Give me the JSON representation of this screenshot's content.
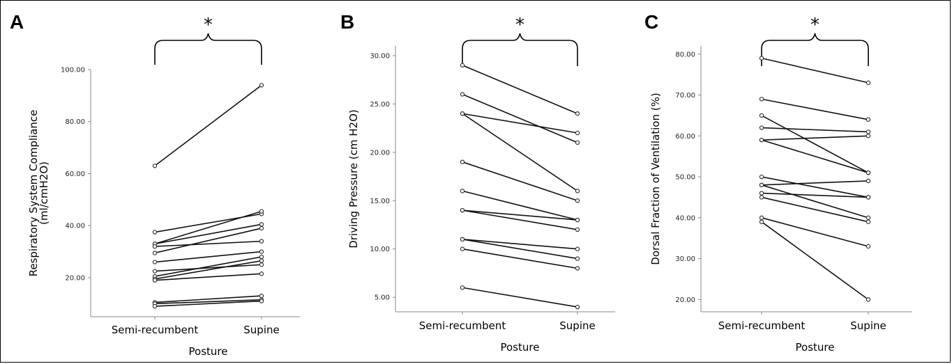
{
  "chart_data": [
    {
      "type": "line",
      "panel": "A",
      "categories": [
        "Semi-recumbent",
        "Supine"
      ],
      "xlabel": "Posture",
      "ylabel_lines": [
        "Respiratory System Compliance",
        "(ml/cmH2O)"
      ],
      "ylim": [
        5,
        100
      ],
      "yticks": [
        "20.00",
        "40.00",
        "60.00",
        "80.00",
        "100.00"
      ],
      "significance": "*",
      "pairs": [
        [
          63,
          94
        ],
        [
          37.5,
          44.5
        ],
        [
          33,
          45.5
        ],
        [
          33,
          40.5
        ],
        [
          32,
          34
        ],
        [
          29.5,
          39
        ],
        [
          26,
          30
        ],
        [
          22.5,
          25
        ],
        [
          20.5,
          28
        ],
        [
          19.5,
          26.5
        ],
        [
          19,
          21.5
        ],
        [
          10.5,
          13
        ],
        [
          10,
          11.5
        ],
        [
          9,
          11
        ]
      ]
    },
    {
      "type": "line",
      "panel": "B",
      "categories": [
        "Semi-recumbent",
        "Supine"
      ],
      "xlabel": "Posture",
      "ylabel_lines": [
        "Driving Pressure (cm H2O)"
      ],
      "ylim": [
        3.5,
        31
      ],
      "yticks": [
        "5.00",
        "10.00",
        "15.00",
        "20.00",
        "25.00",
        "30.00"
      ],
      "significance": "*",
      "pairs": [
        [
          29,
          24
        ],
        [
          26,
          21
        ],
        [
          24,
          22
        ],
        [
          24,
          16
        ],
        [
          19,
          15
        ],
        [
          16,
          13
        ],
        [
          14,
          13
        ],
        [
          14,
          12
        ],
        [
          11,
          10
        ],
        [
          11,
          9
        ],
        [
          10,
          8
        ],
        [
          6,
          4
        ]
      ]
    },
    {
      "type": "line",
      "panel": "C",
      "categories": [
        "Semi-recumbent",
        "Supine"
      ],
      "xlabel": "Posture",
      "ylabel_lines": [
        "Dorsal Fraction of Ventilation (%)"
      ],
      "ylim": [
        17,
        82
      ],
      "yticks": [
        "20.00",
        "30.00",
        "40.00",
        "50.00",
        "60.00",
        "70.00",
        "80.00"
      ],
      "significance": "*",
      "pairs": [
        [
          79,
          73
        ],
        [
          69,
          64
        ],
        [
          65,
          51
        ],
        [
          62,
          61
        ],
        [
          59,
          60
        ],
        [
          59,
          51
        ],
        [
          50,
          45
        ],
        [
          48,
          49
        ],
        [
          48,
          40
        ],
        [
          46,
          45
        ],
        [
          45,
          39
        ],
        [
          40,
          33
        ],
        [
          39,
          20
        ]
      ]
    }
  ]
}
